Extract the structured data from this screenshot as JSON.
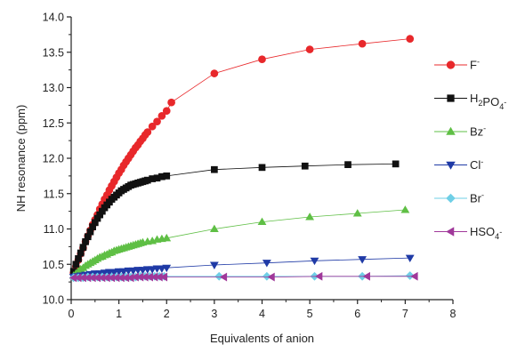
{
  "chart_data": {
    "type": "scatter",
    "xlabel": "Equivalents of anion",
    "ylabel": "NH resonance (ppm)",
    "xlim": [
      0,
      8
    ],
    "ylim": [
      10.0,
      14.0
    ],
    "x_ticks": [
      "0",
      "1",
      "2",
      "3",
      "4",
      "5",
      "6",
      "7",
      "8"
    ],
    "y_ticks": [
      "10.0",
      "10.5",
      "11.0",
      "11.5",
      "12.0",
      "12.5",
      "13.0",
      "13.5",
      "14.0"
    ],
    "grid": false,
    "legend_position": "right",
    "series": [
      {
        "name": "F",
        "charge": "-",
        "color": "#e8282b",
        "marker": "circle",
        "points": [
          [
            0.05,
            10.38
          ],
          [
            0.1,
            10.47
          ],
          [
            0.15,
            10.56
          ],
          [
            0.2,
            10.65
          ],
          [
            0.25,
            10.73
          ],
          [
            0.3,
            10.82
          ],
          [
            0.35,
            10.9
          ],
          [
            0.4,
            10.98
          ],
          [
            0.45,
            11.06
          ],
          [
            0.5,
            11.13
          ],
          [
            0.55,
            11.2
          ],
          [
            0.6,
            11.28
          ],
          [
            0.65,
            11.35
          ],
          [
            0.7,
            11.42
          ],
          [
            0.75,
            11.48
          ],
          [
            0.8,
            11.55
          ],
          [
            0.85,
            11.61
          ],
          [
            0.9,
            11.67
          ],
          [
            0.95,
            11.73
          ],
          [
            1.0,
            11.79
          ],
          [
            1.05,
            11.84
          ],
          [
            1.1,
            11.9
          ],
          [
            1.15,
            11.95
          ],
          [
            1.2,
            12.0
          ],
          [
            1.25,
            12.05
          ],
          [
            1.3,
            12.1
          ],
          [
            1.35,
            12.15
          ],
          [
            1.4,
            12.19
          ],
          [
            1.45,
            12.24
          ],
          [
            1.5,
            12.28
          ],
          [
            1.55,
            12.33
          ],
          [
            1.6,
            12.37
          ],
          [
            1.7,
            12.45
          ],
          [
            1.8,
            12.52
          ],
          [
            1.9,
            12.6
          ],
          [
            2.0,
            12.67
          ],
          [
            2.1,
            12.79
          ],
          [
            3.0,
            13.2
          ],
          [
            4.0,
            13.4
          ],
          [
            5.0,
            13.54
          ],
          [
            6.1,
            13.62
          ],
          [
            7.1,
            13.69
          ]
        ]
      },
      {
        "name": "H2PO4",
        "charge": "-",
        "color": "#111111",
        "marker": "square",
        "points": [
          [
            0.05,
            10.4
          ],
          [
            0.1,
            10.5
          ],
          [
            0.15,
            10.58
          ],
          [
            0.2,
            10.66
          ],
          [
            0.25,
            10.74
          ],
          [
            0.3,
            10.82
          ],
          [
            0.35,
            10.89
          ],
          [
            0.4,
            10.96
          ],
          [
            0.45,
            11.03
          ],
          [
            0.5,
            11.09
          ],
          [
            0.55,
            11.15
          ],
          [
            0.6,
            11.2
          ],
          [
            0.65,
            11.25
          ],
          [
            0.7,
            11.3
          ],
          [
            0.75,
            11.34
          ],
          [
            0.8,
            11.38
          ],
          [
            0.85,
            11.42
          ],
          [
            0.9,
            11.45
          ],
          [
            0.95,
            11.48
          ],
          [
            1.0,
            11.51
          ],
          [
            1.05,
            11.54
          ],
          [
            1.1,
            11.56
          ],
          [
            1.15,
            11.58
          ],
          [
            1.2,
            11.6
          ],
          [
            1.25,
            11.62
          ],
          [
            1.3,
            11.63
          ],
          [
            1.35,
            11.64
          ],
          [
            1.4,
            11.65
          ],
          [
            1.45,
            11.66
          ],
          [
            1.5,
            11.67
          ],
          [
            1.55,
            11.68
          ],
          [
            1.6,
            11.69
          ],
          [
            1.7,
            11.71
          ],
          [
            1.8,
            11.72
          ],
          [
            1.9,
            11.74
          ],
          [
            2.0,
            11.75
          ],
          [
            3.0,
            11.84
          ],
          [
            4.0,
            11.87
          ],
          [
            4.9,
            11.89
          ],
          [
            5.8,
            11.91
          ],
          [
            6.8,
            11.92
          ]
        ]
      },
      {
        "name": "Bz",
        "charge": "-",
        "color": "#5fbf45",
        "marker": "triangle-up",
        "points": [
          [
            0.05,
            10.34
          ],
          [
            0.1,
            10.37
          ],
          [
            0.15,
            10.4
          ],
          [
            0.2,
            10.43
          ],
          [
            0.25,
            10.45
          ],
          [
            0.3,
            10.48
          ],
          [
            0.35,
            10.5
          ],
          [
            0.4,
            10.52
          ],
          [
            0.45,
            10.54
          ],
          [
            0.5,
            10.56
          ],
          [
            0.55,
            10.58
          ],
          [
            0.6,
            10.6
          ],
          [
            0.65,
            10.61
          ],
          [
            0.7,
            10.63
          ],
          [
            0.75,
            10.64
          ],
          [
            0.8,
            10.66
          ],
          [
            0.85,
            10.67
          ],
          [
            0.9,
            10.69
          ],
          [
            0.95,
            10.7
          ],
          [
            1.0,
            10.71
          ],
          [
            1.05,
            10.72
          ],
          [
            1.1,
            10.73
          ],
          [
            1.15,
            10.74
          ],
          [
            1.2,
            10.75
          ],
          [
            1.25,
            10.76
          ],
          [
            1.3,
            10.77
          ],
          [
            1.35,
            10.78
          ],
          [
            1.4,
            10.79
          ],
          [
            1.45,
            10.8
          ],
          [
            1.5,
            10.81
          ],
          [
            1.6,
            10.82
          ],
          [
            1.7,
            10.83
          ],
          [
            1.8,
            10.85
          ],
          [
            1.9,
            10.86
          ],
          [
            2.0,
            10.87
          ],
          [
            3.0,
            11.0
          ],
          [
            4.0,
            11.1
          ],
          [
            5.0,
            11.17
          ],
          [
            6.0,
            11.22
          ],
          [
            7.0,
            11.27
          ]
        ]
      },
      {
        "name": "Cl",
        "charge": "-",
        "color": "#1f3aa6",
        "marker": "triangle-down",
        "points": [
          [
            0.05,
            10.32
          ],
          [
            0.1,
            10.33
          ],
          [
            0.2,
            10.34
          ],
          [
            0.3,
            10.35
          ],
          [
            0.4,
            10.36
          ],
          [
            0.5,
            10.37
          ],
          [
            0.6,
            10.37
          ],
          [
            0.7,
            10.38
          ],
          [
            0.8,
            10.39
          ],
          [
            0.9,
            10.39
          ],
          [
            1.0,
            10.4
          ],
          [
            1.1,
            10.4
          ],
          [
            1.2,
            10.41
          ],
          [
            1.3,
            10.41
          ],
          [
            1.4,
            10.42
          ],
          [
            1.5,
            10.42
          ],
          [
            1.6,
            10.43
          ],
          [
            1.7,
            10.43
          ],
          [
            1.8,
            10.44
          ],
          [
            1.9,
            10.44
          ],
          [
            2.0,
            10.45
          ],
          [
            3.0,
            10.49
          ],
          [
            4.1,
            10.52
          ],
          [
            5.1,
            10.55
          ],
          [
            6.1,
            10.57
          ],
          [
            7.1,
            10.59
          ]
        ]
      },
      {
        "name": "Br",
        "charge": "-",
        "color": "#6fcfe6",
        "marker": "diamond",
        "points": [
          [
            0.05,
            10.31
          ],
          [
            0.15,
            10.31
          ],
          [
            0.25,
            10.31
          ],
          [
            0.35,
            10.32
          ],
          [
            0.45,
            10.32
          ],
          [
            0.55,
            10.32
          ],
          [
            0.65,
            10.32
          ],
          [
            0.75,
            10.32
          ],
          [
            0.85,
            10.32
          ],
          [
            0.95,
            10.32
          ],
          [
            1.05,
            10.32
          ],
          [
            1.15,
            10.32
          ],
          [
            1.25,
            10.32
          ],
          [
            1.35,
            10.32
          ],
          [
            1.45,
            10.33
          ],
          [
            1.55,
            10.33
          ],
          [
            1.65,
            10.33
          ],
          [
            1.75,
            10.33
          ],
          [
            1.85,
            10.33
          ],
          [
            1.95,
            10.33
          ],
          [
            3.1,
            10.33
          ],
          [
            4.1,
            10.33
          ],
          [
            5.1,
            10.33
          ],
          [
            6.1,
            10.33
          ],
          [
            7.1,
            10.34
          ]
        ]
      },
      {
        "name": "HSO4",
        "charge": "-",
        "color": "#a0389a",
        "marker": "triangle-left",
        "points": [
          [
            0.05,
            10.31
          ],
          [
            0.15,
            10.31
          ],
          [
            0.25,
            10.31
          ],
          [
            0.35,
            10.31
          ],
          [
            0.45,
            10.31
          ],
          [
            0.55,
            10.31
          ],
          [
            0.65,
            10.31
          ],
          [
            0.75,
            10.31
          ],
          [
            0.85,
            10.31
          ],
          [
            0.95,
            10.31
          ],
          [
            1.05,
            10.31
          ],
          [
            1.15,
            10.31
          ],
          [
            1.25,
            10.31
          ],
          [
            1.35,
            10.32
          ],
          [
            1.45,
            10.32
          ],
          [
            1.55,
            10.32
          ],
          [
            1.65,
            10.32
          ],
          [
            1.75,
            10.32
          ],
          [
            1.85,
            10.32
          ],
          [
            1.95,
            10.32
          ],
          [
            3.2,
            10.32
          ],
          [
            4.2,
            10.32
          ],
          [
            5.2,
            10.33
          ],
          [
            6.2,
            10.33
          ],
          [
            7.2,
            10.33
          ]
        ]
      }
    ]
  }
}
